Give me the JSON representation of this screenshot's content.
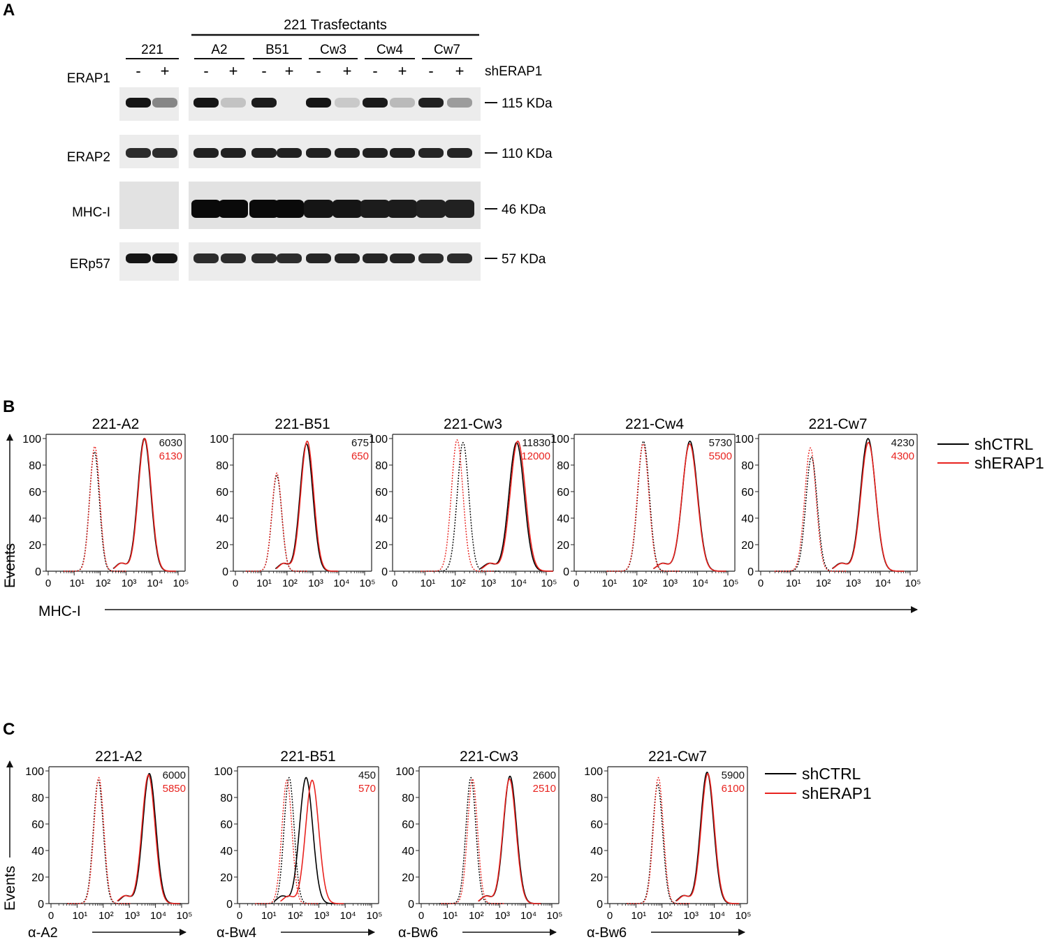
{
  "panel_a": {
    "letter": "A",
    "group_label": "221 Trasfectants",
    "sample_labels": [
      "221",
      "A2",
      "B51",
      "Cw3",
      "Cw4",
      "Cw7"
    ],
    "signs": [
      "-",
      "+",
      "-",
      "+",
      "-",
      "+",
      "-",
      "+",
      "-",
      "+",
      "-",
      "+"
    ],
    "condition_label": "shERAP1",
    "blots": [
      {
        "label": "ERAP1",
        "size": "115 KDa",
        "intensity": [
          0.95,
          0.45,
          0.95,
          0.18,
          0.92,
          0.0,
          0.95,
          0.15,
          0.93,
          0.22,
          0.9,
          0.35
        ]
      },
      {
        "label": "ERAP2",
        "size": "110 KDa",
        "intensity": [
          0.85,
          0.85,
          0.9,
          0.9,
          0.9,
          0.9,
          0.9,
          0.9,
          0.9,
          0.9,
          0.88,
          0.88
        ]
      },
      {
        "label": "MHC-I",
        "size": "46 KDa",
        "intensity": [
          0.0,
          0.0,
          1.0,
          1.0,
          1.0,
          1.0,
          0.95,
          0.95,
          0.92,
          0.92,
          0.9,
          0.9
        ]
      },
      {
        "label": "ERp57",
        "size": "57 KDa",
        "intensity": [
          0.95,
          0.95,
          0.85,
          0.85,
          0.85,
          0.85,
          0.88,
          0.88,
          0.88,
          0.88,
          0.85,
          0.85
        ]
      }
    ]
  },
  "panel_b": {
    "letter": "B",
    "y_axis_label": "Events",
    "x_axis_label": "MHC-I",
    "legend": [
      {
        "label": "shCTRL",
        "color": "#000000"
      },
      {
        "label": "shERAP1",
        "color": "#e8231f"
      }
    ]
  },
  "panel_c": {
    "letter": "C",
    "y_axis_label": "Events",
    "legend": [
      {
        "label": "shCTRL",
        "color": "#000000"
      },
      {
        "label": "shERAP1",
        "color": "#e8231f"
      }
    ]
  },
  "chart_data": [
    {
      "type": "histogram",
      "panel": "B",
      "title": "221-A2",
      "xlabel": "MHC-I",
      "ylabel": "Events",
      "x_scale": "log",
      "x_ticks": [
        "0",
        "10¹",
        "10²",
        "10³",
        "10⁴",
        "10⁵"
      ],
      "y_ticks": [
        0,
        20,
        40,
        60,
        80,
        100
      ],
      "ylim": [
        0,
        100
      ],
      "mfi": {
        "shCTRL": "6030",
        "shERAP1": "6130"
      },
      "series": [
        {
          "name": "shCTRL",
          "style": "dotted",
          "peak_x": 60,
          "peak_y": 90
        },
        {
          "name": "shERAP1",
          "style": "dotted",
          "peak_x": 62,
          "peak_y": 94
        },
        {
          "name": "shCTRL",
          "style": "solid",
          "peak_x": 5000,
          "peak_y": 100
        },
        {
          "name": "shERAP1",
          "style": "solid",
          "peak_x": 5200,
          "peak_y": 100
        }
      ]
    },
    {
      "type": "histogram",
      "panel": "B",
      "title": "221-B51",
      "xlabel": "MHC-I",
      "ylabel": "Events",
      "x_scale": "log",
      "x_ticks": [
        "0",
        "10¹",
        "10²",
        "10³",
        "10⁴",
        "10⁵"
      ],
      "y_ticks": [
        0,
        20,
        40,
        60,
        80,
        100
      ],
      "ylim": [
        0,
        100
      ],
      "mfi": {
        "shCTRL": "675",
        "shERAP1": "650"
      },
      "series": [
        {
          "name": "shCTRL",
          "style": "dotted",
          "peak_x": 40,
          "peak_y": 72
        },
        {
          "name": "shERAP1",
          "style": "dotted",
          "peak_x": 40,
          "peak_y": 74
        },
        {
          "name": "shCTRL",
          "style": "solid",
          "peak_x": 560,
          "peak_y": 96
        },
        {
          "name": "shERAP1",
          "style": "solid",
          "peak_x": 600,
          "peak_y": 98
        }
      ]
    },
    {
      "type": "histogram",
      "panel": "B",
      "title": "221-Cw3",
      "xlabel": "MHC-I",
      "ylabel": "Events",
      "x_scale": "log",
      "x_ticks": [
        "0",
        "10¹",
        "10²",
        "10³",
        "10⁴",
        "10⁵"
      ],
      "y_ticks": [
        0,
        20,
        40,
        60,
        80,
        100
      ],
      "ylim": [
        0,
        100
      ],
      "mfi": {
        "shCTRL": "11830",
        "shERAP1": "12000"
      },
      "series": [
        {
          "name": "shCTRL",
          "style": "dotted",
          "peak_x": 180,
          "peak_y": 97
        },
        {
          "name": "shERAP1",
          "style": "dotted",
          "peak_x": 115,
          "peak_y": 99
        },
        {
          "name": "shCTRL",
          "style": "solid",
          "peak_x": 10500,
          "peak_y": 97
        },
        {
          "name": "shERAP1",
          "style": "solid",
          "peak_x": 11500,
          "peak_y": 98
        }
      ]
    },
    {
      "type": "histogram",
      "panel": "B",
      "title": "221-Cw4",
      "xlabel": "MHC-I",
      "ylabel": "Events",
      "x_scale": "log",
      "x_ticks": [
        "0",
        "10¹",
        "10²",
        "10³",
        "10⁴",
        "10⁵"
      ],
      "y_ticks": [
        0,
        20,
        40,
        60,
        80,
        100
      ],
      "ylim": [
        0,
        100
      ],
      "mfi": {
        "shCTRL": "5730",
        "shERAP1": "5500"
      },
      "series": [
        {
          "name": "shCTRL",
          "style": "dotted",
          "peak_x": 165,
          "peak_y": 98
        },
        {
          "name": "shERAP1",
          "style": "dotted",
          "peak_x": 160,
          "peak_y": 96
        },
        {
          "name": "shCTRL",
          "style": "solid",
          "peak_x": 5600,
          "peak_y": 98
        },
        {
          "name": "shERAP1",
          "style": "solid",
          "peak_x": 5500,
          "peak_y": 96
        }
      ]
    },
    {
      "type": "histogram",
      "panel": "B",
      "title": "221-Cw7",
      "xlabel": "MHC-I",
      "ylabel": "Events",
      "x_scale": "log",
      "x_ticks": [
        "0",
        "10¹",
        "10²",
        "10³",
        "10⁴",
        "10⁵"
      ],
      "y_ticks": [
        0,
        20,
        40,
        60,
        80,
        100
      ],
      "ylim": [
        0,
        100
      ],
      "mfi": {
        "shCTRL": "4230",
        "shERAP1": "4300"
      },
      "series": [
        {
          "name": "shCTRL",
          "style": "dotted",
          "peak_x": 50,
          "peak_y": 86
        },
        {
          "name": "shERAP1",
          "style": "dotted",
          "peak_x": 46,
          "peak_y": 93
        },
        {
          "name": "shCTRL",
          "style": "solid",
          "peak_x": 3900,
          "peak_y": 100
        },
        {
          "name": "shERAP1",
          "style": "solid",
          "peak_x": 4000,
          "peak_y": 97
        }
      ]
    },
    {
      "type": "histogram",
      "panel": "C",
      "title": "221-A2",
      "xlabel": "α-A2",
      "ylabel": "Events",
      "x_scale": "log",
      "x_ticks": [
        "0",
        "10¹",
        "10²",
        "10³",
        "10⁴",
        "10⁵"
      ],
      "y_ticks": [
        0,
        20,
        40,
        60,
        80,
        100
      ],
      "ylim": [
        0,
        100
      ],
      "mfi": {
        "shCTRL": "6000",
        "shERAP1": "5850"
      },
      "series": [
        {
          "name": "shCTRL",
          "style": "dotted",
          "peak_x": 65,
          "peak_y": 93
        },
        {
          "name": "shERAP1",
          "style": "dotted",
          "peak_x": 68,
          "peak_y": 95
        },
        {
          "name": "shCTRL",
          "style": "solid",
          "peak_x": 5800,
          "peak_y": 98
        },
        {
          "name": "shERAP1",
          "style": "solid",
          "peak_x": 5400,
          "peak_y": 97
        }
      ]
    },
    {
      "type": "histogram",
      "panel": "C",
      "title": "221-B51",
      "xlabel": "α-Bw4",
      "ylabel": "Events",
      "x_scale": "log",
      "x_ticks": [
        "0",
        "10¹",
        "10²",
        "10³",
        "10⁴",
        "10⁵"
      ],
      "y_ticks": [
        0,
        20,
        40,
        60,
        80,
        100
      ],
      "ylim": [
        0,
        100
      ],
      "mfi": {
        "shCTRL": "450",
        "shERAP1": "570"
      },
      "series": [
        {
          "name": "shCTRL",
          "style": "dotted",
          "peak_x": 75,
          "peak_y": 95
        },
        {
          "name": "shERAP1",
          "style": "dotted",
          "peak_x": 62,
          "peak_y": 93
        },
        {
          "name": "shCTRL",
          "style": "solid",
          "peak_x": 330,
          "peak_y": 95
        },
        {
          "name": "shERAP1",
          "style": "solid",
          "peak_x": 560,
          "peak_y": 93
        }
      ]
    },
    {
      "type": "histogram",
      "panel": "C",
      "title": "221-Cw3",
      "xlabel": "α-Bw6",
      "ylabel": "Events",
      "x_scale": "log",
      "x_ticks": [
        "0",
        "10¹",
        "10²",
        "10³",
        "10⁴",
        "10⁵"
      ],
      "y_ticks": [
        0,
        20,
        40,
        60,
        80,
        100
      ],
      "ylim": [
        0,
        100
      ],
      "mfi": {
        "shCTRL": "2600",
        "shERAP1": "2510"
      },
      "series": [
        {
          "name": "shCTRL",
          "style": "dotted",
          "peak_x": 80,
          "peak_y": 95
        },
        {
          "name": "shERAP1",
          "style": "dotted",
          "peak_x": 92,
          "peak_y": 94
        },
        {
          "name": "shCTRL",
          "style": "solid",
          "peak_x": 2500,
          "peak_y": 96
        },
        {
          "name": "shERAP1",
          "style": "solid",
          "peak_x": 2400,
          "peak_y": 94
        }
      ]
    },
    {
      "type": "histogram",
      "panel": "C",
      "title": "221-Cw7",
      "xlabel": "α-Bw6",
      "ylabel": "Events",
      "x_scale": "log",
      "x_ticks": [
        "0",
        "10¹",
        "10²",
        "10³",
        "10⁴",
        "10⁵"
      ],
      "y_ticks": [
        0,
        20,
        40,
        60,
        80,
        100
      ],
      "ylim": [
        0,
        100
      ],
      "mfi": {
        "shCTRL": "5900",
        "shERAP1": "6100"
      },
      "series": [
        {
          "name": "shCTRL",
          "style": "dotted",
          "peak_x": 68,
          "peak_y": 90
        },
        {
          "name": "shERAP1",
          "style": "dotted",
          "peak_x": 72,
          "peak_y": 95
        },
        {
          "name": "shCTRL",
          "style": "solid",
          "peak_x": 5300,
          "peak_y": 99
        },
        {
          "name": "shERAP1",
          "style": "solid",
          "peak_x": 5600,
          "peak_y": 98
        }
      ]
    }
  ]
}
